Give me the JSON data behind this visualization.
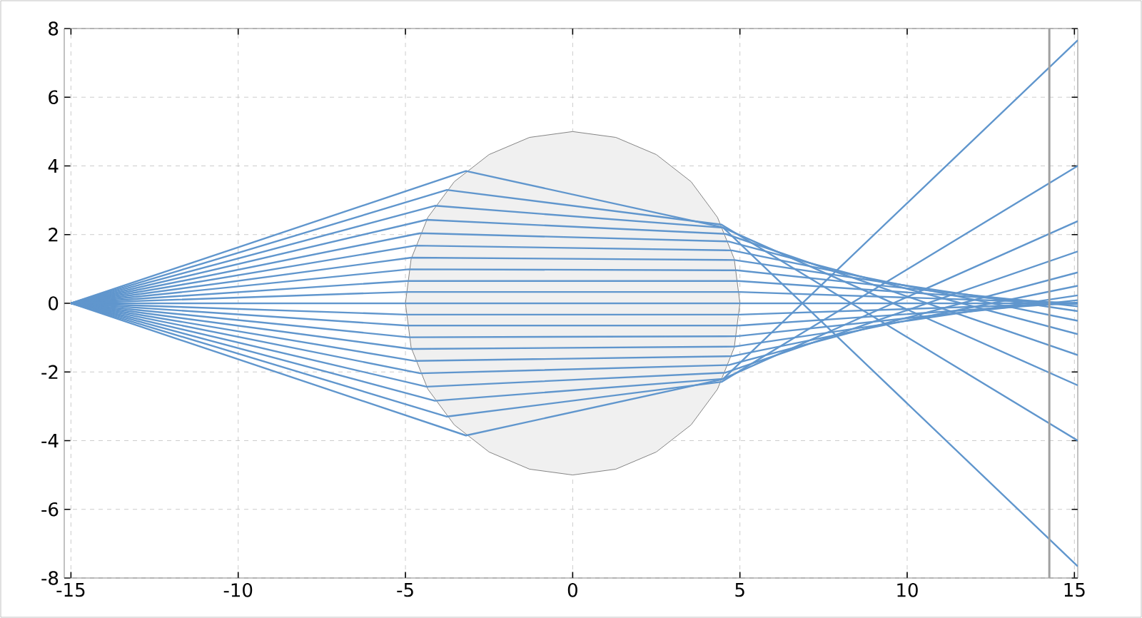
{
  "chart_data": {
    "type": "line",
    "xlim": [
      -15.2,
      15.1
    ],
    "ylim": [
      -8,
      8
    ],
    "xticks": [
      -15,
      -10,
      -5,
      0,
      5,
      10,
      15
    ],
    "yticks": [
      -8,
      -6,
      -4,
      -2,
      0,
      2,
      4,
      6,
      8
    ],
    "grid": true,
    "ref_lines": [
      {
        "axis": "x",
        "value": 14.25,
        "color": "#a0a0a0"
      }
    ],
    "series": [
      {
        "type": "area",
        "color": "#f0f0f0",
        "x": [
          5,
          4.83,
          4.33,
          3.54,
          2.5,
          1.29,
          0,
          -1.29,
          -2.5,
          -3.54,
          -4.33,
          -4.83,
          -5,
          -4.83,
          -4.33,
          -3.54,
          -2.5,
          -1.29,
          0,
          1.29,
          2.5,
          3.54,
          4.33,
          4.83,
          5
        ],
        "values": [
          0,
          1.29,
          2.5,
          3.54,
          4.33,
          4.83,
          5,
          4.83,
          4.33,
          3.54,
          2.5,
          1.29,
          0,
          -1.29,
          -2.5,
          -3.54,
          -4.33,
          -4.83,
          -5,
          -4.83,
          -4.33,
          -3.54,
          -2.5,
          -1.29,
          0
        ]
      },
      {
        "color": "#6096cd",
        "x": [
          -15,
          -3.19,
          4.49,
          15.1
        ],
        "values": [
          0,
          3.85,
          2.21,
          -7.66
        ]
      },
      {
        "color": "#6096cd",
        "x": [
          -15,
          -3.76,
          4.45,
          15.1
        ],
        "values": [
          0,
          3.3,
          2.29,
          -4.0
        ]
      },
      {
        "color": "#6096cd",
        "x": [
          -15,
          -4.12,
          4.5,
          15.1
        ],
        "values": [
          0,
          2.84,
          2.2,
          -2.39
        ]
      },
      {
        "color": "#6096cd",
        "x": [
          -15,
          -4.37,
          4.57,
          15.1
        ],
        "values": [
          0,
          2.43,
          2.02,
          -1.51
        ]
      },
      {
        "color": "#6096cd",
        "x": [
          -15,
          -4.56,
          4.66,
          15.1
        ],
        "values": [
          0,
          2.04,
          1.8,
          -0.9
        ]
      },
      {
        "color": "#6096cd",
        "x": [
          -15,
          -4.71,
          4.76,
          15.1
        ],
        "values": [
          0,
          1.68,
          1.54,
          -0.51
        ]
      },
      {
        "color": "#6096cd",
        "x": [
          -15,
          -4.82,
          4.84,
          15.1
        ],
        "values": [
          0,
          1.33,
          1.26,
          -0.23
        ]
      },
      {
        "color": "#6096cd",
        "x": [
          -15,
          -4.9,
          4.91,
          15.1
        ],
        "values": [
          0,
          0.99,
          0.96,
          -0.09
        ]
      },
      {
        "color": "#6096cd",
        "x": [
          -15,
          -4.96,
          4.96,
          15.1
        ],
        "values": [
          0,
          0.65,
          0.65,
          -0.02
        ]
      },
      {
        "color": "#6096cd",
        "x": [
          -15,
          -4.99,
          4.99,
          15.1
        ],
        "values": [
          0,
          0.33,
          0.33,
          0
        ]
      },
      {
        "color": "#6096cd",
        "x": [
          -15,
          15.1
        ],
        "values": [
          0,
          0
        ]
      },
      {
        "color": "#6096cd",
        "x": [
          -15,
          -4.99,
          4.99,
          15.1
        ],
        "values": [
          0,
          -0.33,
          -0.33,
          0
        ]
      },
      {
        "color": "#6096cd",
        "x": [
          -15,
          -4.96,
          4.96,
          15.1
        ],
        "values": [
          0,
          -0.65,
          -0.65,
          0.02
        ]
      },
      {
        "color": "#6096cd",
        "x": [
          -15,
          -4.9,
          4.91,
          15.1
        ],
        "values": [
          0,
          -0.99,
          -0.96,
          0.09
        ]
      },
      {
        "color": "#6096cd",
        "x": [
          -15,
          -4.82,
          4.84,
          15.1
        ],
        "values": [
          0,
          -1.33,
          -1.26,
          0.23
        ]
      },
      {
        "color": "#6096cd",
        "x": [
          -15,
          -4.71,
          4.76,
          15.1
        ],
        "values": [
          0,
          -1.68,
          -1.54,
          0.51
        ]
      },
      {
        "color": "#6096cd",
        "x": [
          -15,
          -4.56,
          4.66,
          15.1
        ],
        "values": [
          0,
          -2.04,
          -1.8,
          0.9
        ]
      },
      {
        "color": "#6096cd",
        "x": [
          -15,
          -4.37,
          4.57,
          15.1
        ],
        "values": [
          0,
          -2.43,
          -2.02,
          1.51
        ]
      },
      {
        "color": "#6096cd",
        "x": [
          -15,
          -4.12,
          4.5,
          15.1
        ],
        "values": [
          0,
          -2.84,
          -2.2,
          2.39
        ]
      },
      {
        "color": "#6096cd",
        "x": [
          -15,
          -3.76,
          4.45,
          15.1
        ],
        "values": [
          0,
          -3.3,
          -2.29,
          4.0
        ]
      },
      {
        "color": "#6096cd",
        "x": [
          -15,
          -3.19,
          4.49,
          15.1
        ],
        "values": [
          0,
          -3.85,
          -2.21,
          7.66
        ]
      }
    ]
  }
}
